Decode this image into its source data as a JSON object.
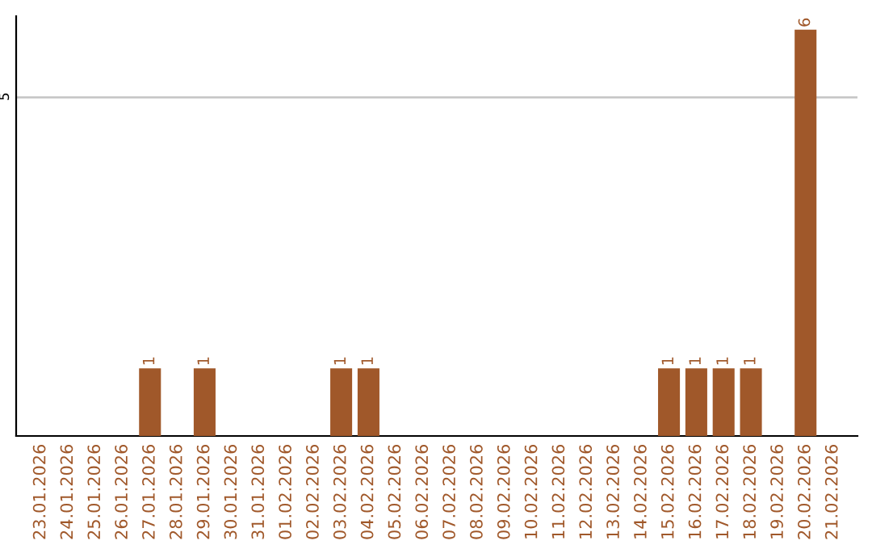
{
  "chart_data": {
    "type": "bar",
    "categories": [
      "23.01.2026",
      "24.01.2026",
      "25.01.2026",
      "26.01.2026",
      "27.01.2026",
      "28.01.2026",
      "29.01.2026",
      "30.01.2026",
      "31.01.2026",
      "01.02.2026",
      "02.02.2026",
      "03.02.2026",
      "04.02.2026",
      "05.02.2026",
      "06.02.2026",
      "07.02.2026",
      "08.02.2026",
      "09.02.2026",
      "10.02.2026",
      "11.02.2026",
      "12.02.2026",
      "13.02.2026",
      "14.02.2026",
      "15.02.2026",
      "16.02.2026",
      "17.02.2026",
      "18.02.2026",
      "19.02.2026",
      "20.02.2026",
      "21.02.2026"
    ],
    "values": [
      0,
      0,
      0,
      0,
      1,
      0,
      1,
      0,
      0,
      0,
      0,
      1,
      1,
      0,
      0,
      0,
      0,
      0,
      0,
      0,
      0,
      0,
      0,
      1,
      1,
      1,
      1,
      0,
      6,
      0
    ],
    "value_labels": [
      null,
      null,
      null,
      null,
      "1",
      null,
      "1",
      null,
      null,
      null,
      null,
      "1",
      "1",
      null,
      null,
      null,
      null,
      null,
      null,
      null,
      null,
      null,
      null,
      "1",
      "1",
      "1",
      "1",
      null,
      "6",
      null
    ],
    "color": "#a0582a",
    "ylim": [
      0,
      6.2
    ],
    "yticks": [
      5
    ],
    "grid": "y"
  }
}
